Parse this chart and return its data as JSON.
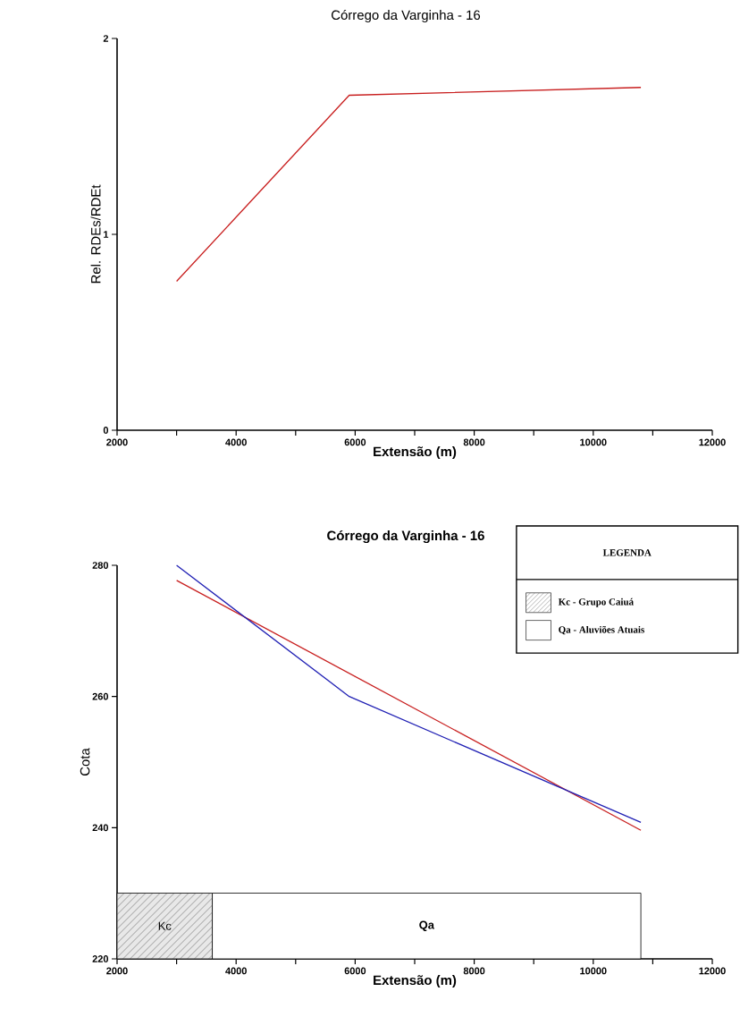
{
  "chart_data": [
    {
      "type": "line",
      "title": "Córrego da Varginha - 16",
      "xlabel": "Extensão (m)",
      "ylabel": "Rel. RDEs/RDEt",
      "xlim": [
        2000,
        12000
      ],
      "ylim": [
        0,
        2
      ],
      "xticks": [
        2000,
        {
          "value": 3000,
          "label": null
        },
        4000,
        {
          "value": 5000,
          "label": null
        },
        6000,
        {
          "value": 7000,
          "label": null
        },
        8000,
        {
          "value": 9000,
          "label": null
        },
        10000,
        {
          "value": 11000,
          "label": null
        },
        12000
      ],
      "yticks": [
        0,
        1,
        2
      ],
      "series": [
        {
          "color": "#c81e1e",
          "x": [
            3000,
            5900,
            10800
          ],
          "values": [
            0.76,
            1.71,
            1.75
          ]
        }
      ]
    },
    {
      "type": "line",
      "title": "Córrego da Varginha - 16",
      "xlabel": "Extensão (m)",
      "ylabel": "Cota",
      "xlim": [
        2000,
        12000
      ],
      "ylim": [
        220,
        280
      ],
      "xticks": [
        2000,
        {
          "value": 3000,
          "label": null
        },
        4000,
        {
          "value": 5000,
          "label": null
        },
        6000,
        {
          "value": 7000,
          "label": null
        },
        8000,
        {
          "value": 9000,
          "label": null
        },
        10000,
        {
          "value": 11000,
          "label": null
        },
        12000
      ],
      "yticks": [
        220,
        240,
        260,
        280
      ],
      "series": [
        {
          "color": "#c81e1e",
          "x": [
            3000,
            10800
          ],
          "values": [
            277.7,
            239.6
          ]
        },
        {
          "color": "#2020b4",
          "x": [
            3000,
            5900,
            10800
          ],
          "values": [
            280,
            260,
            240.8
          ]
        }
      ],
      "bands": [
        {
          "axis": "x",
          "from": 2000,
          "to": 3600,
          "label": "Kc",
          "color": "#e8e8e8"
        },
        {
          "axis": "x",
          "from": 3600,
          "to": 10800,
          "label": "Qa",
          "color": "#ffffff"
        }
      ],
      "legend_title": "LEGENDA",
      "annotations": [
        "Kc - Grupo Caiuá",
        "Qa - Aluviões Atuais"
      ]
    }
  ]
}
